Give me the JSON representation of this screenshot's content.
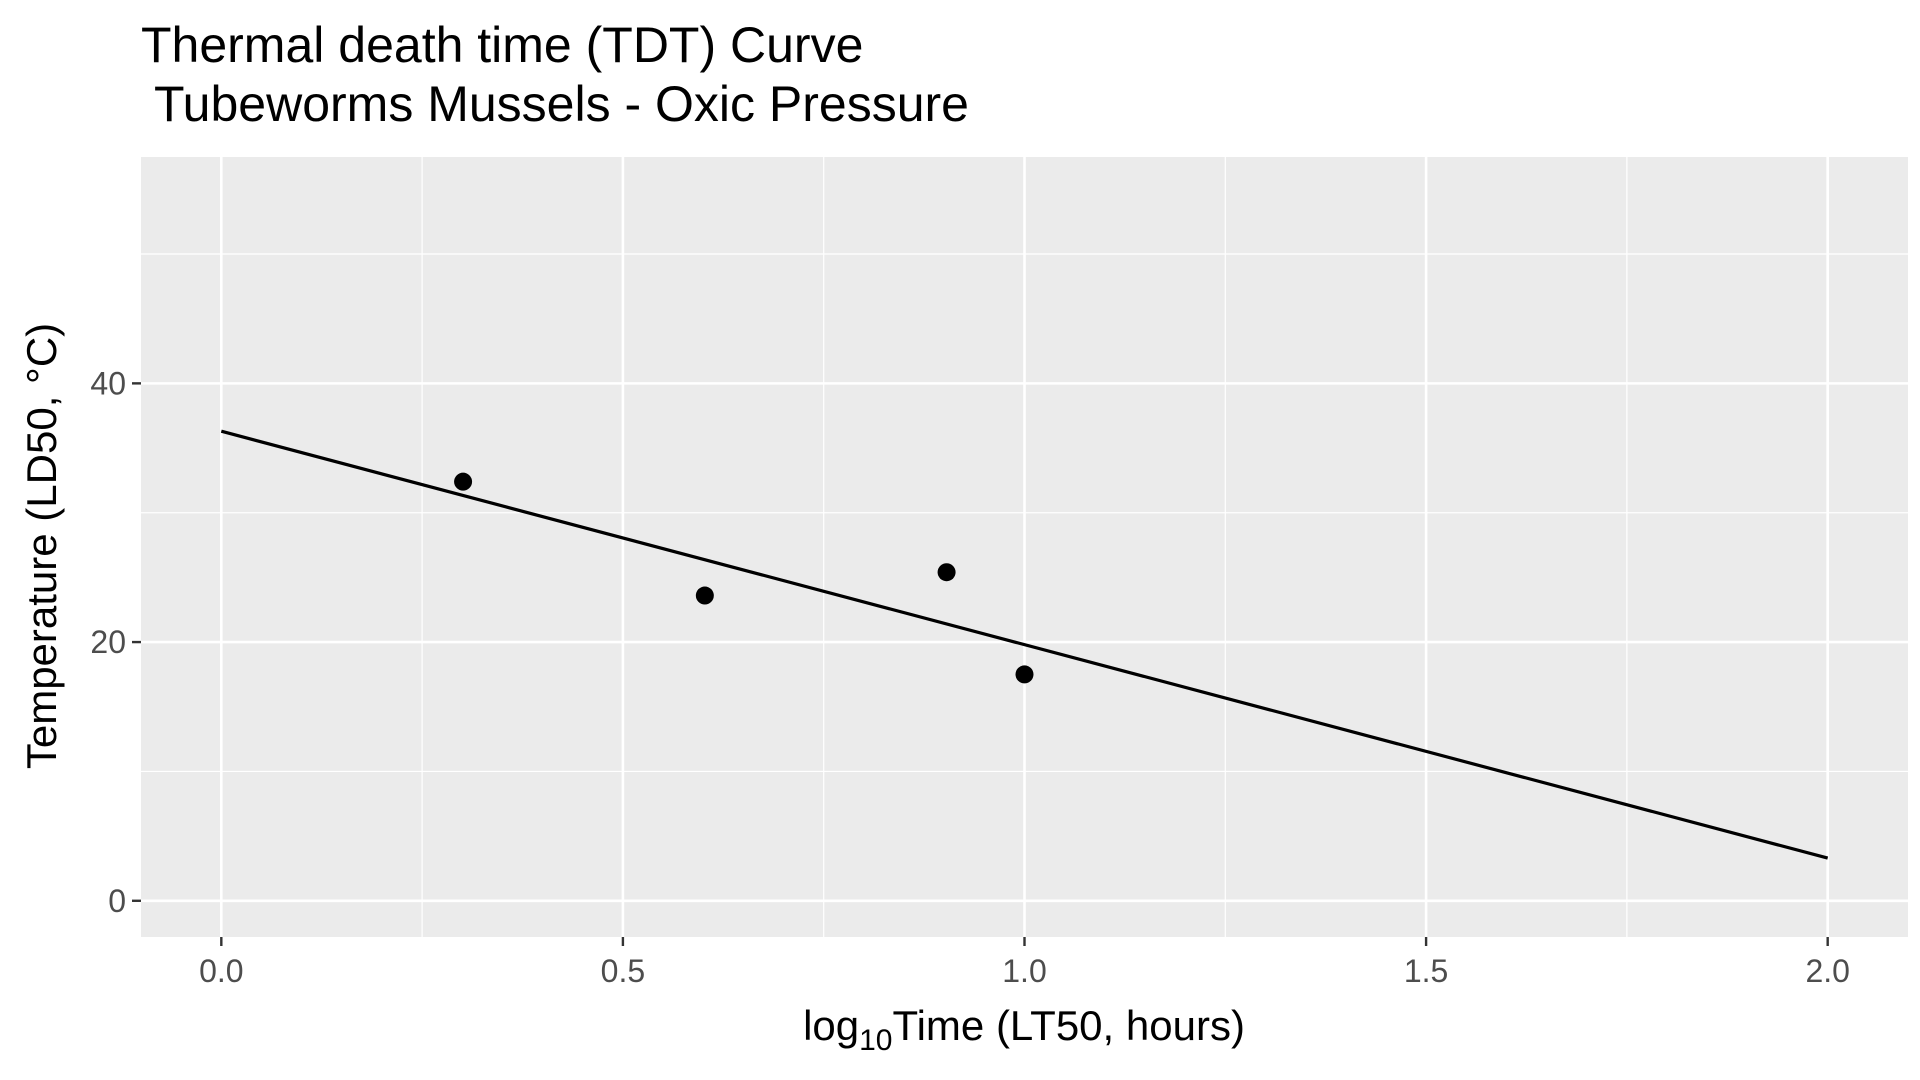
{
  "chart_data": {
    "type": "scatter",
    "title_line1": "Thermal death time (TDT) Curve",
    "title_line2": " Tubeworms Mussels - Oxic Pressure",
    "xlabel": {
      "prefix": "log",
      "subscript": "10",
      "suffix": "Time (LT50, hours)"
    },
    "ylabel": "Temperature (LD50, °C)",
    "xlim": [
      -0.1,
      2.1
    ],
    "ylim": [
      -2.8,
      57.5
    ],
    "x_ticks": [
      0.0,
      0.5,
      1.0,
      1.5,
      2.0
    ],
    "x_tick_labels": [
      "0.0",
      "0.5",
      "1.0",
      "1.5",
      "2.0"
    ],
    "x_minor_ticks": [
      0.25,
      0.75,
      1.25,
      1.75
    ],
    "y_ticks": [
      0,
      20,
      40
    ],
    "y_tick_labels": [
      "0",
      "20",
      "40"
    ],
    "y_minor_ticks": [
      10,
      30,
      50
    ],
    "grid": true,
    "points": [
      {
        "x": 0.301,
        "y": 32.4
      },
      {
        "x": 0.602,
        "y": 23.6
      },
      {
        "x": 0.903,
        "y": 25.4
      },
      {
        "x": 1.0,
        "y": 17.5
      }
    ],
    "fit_line": {
      "x": [
        0.0,
        2.0
      ],
      "y": [
        36.3,
        3.3
      ]
    },
    "colors": {
      "panel": "#ebebeb",
      "grid": "#ffffff",
      "points": "#000000",
      "line": "#000000",
      "tick": "#333333"
    }
  }
}
